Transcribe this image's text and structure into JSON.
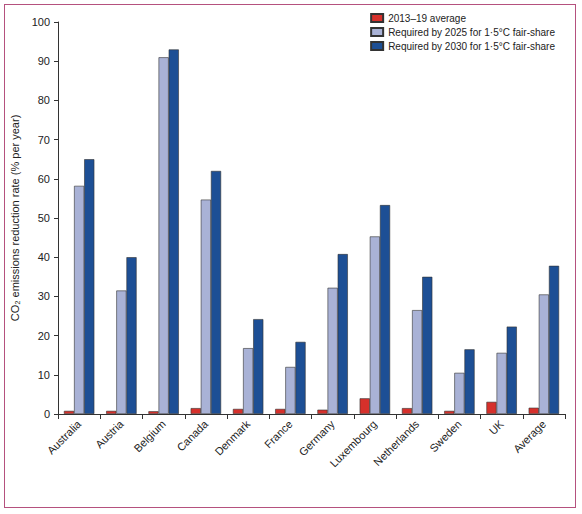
{
  "chart_data": {
    "type": "bar",
    "y_label": "CO₂ emissions reduction rate (% per year)",
    "categories": [
      "Australia",
      "Austria",
      "Belgium",
      "Canada",
      "Denmark",
      "France",
      "Germany",
      "Luxembourg",
      "Netherlands",
      "Sweden",
      "UK",
      "Average"
    ],
    "series": [
      {
        "name": "2013–19 average",
        "color": "#d6302b",
        "values": [
          0.8,
          0.8,
          0.7,
          1.5,
          1.3,
          1.3,
          1.1,
          4.0,
          1.5,
          0.8,
          3.1,
          1.6
        ]
      },
      {
        "name": "Required by 2025 for 1·5°C fair-share",
        "color": "#a9b2d6",
        "values": [
          58.2,
          31.5,
          91.0,
          54.7,
          16.8,
          12.0,
          32.2,
          45.3,
          26.5,
          10.5,
          15.6,
          30.5
        ]
      },
      {
        "name": "Required by 2030 for 1·5°C fair-share",
        "color": "#1d4f95",
        "values": [
          65.0,
          40.0,
          93.0,
          62.0,
          24.2,
          18.4,
          40.8,
          53.3,
          35.0,
          16.5,
          22.3,
          37.8
        ]
      }
    ],
    "ylim": [
      0,
      100
    ],
    "yticks": [
      0,
      10,
      20,
      30,
      40,
      50,
      60,
      70,
      80,
      90,
      100
    ],
    "grid": false,
    "legend": "upper right"
  }
}
